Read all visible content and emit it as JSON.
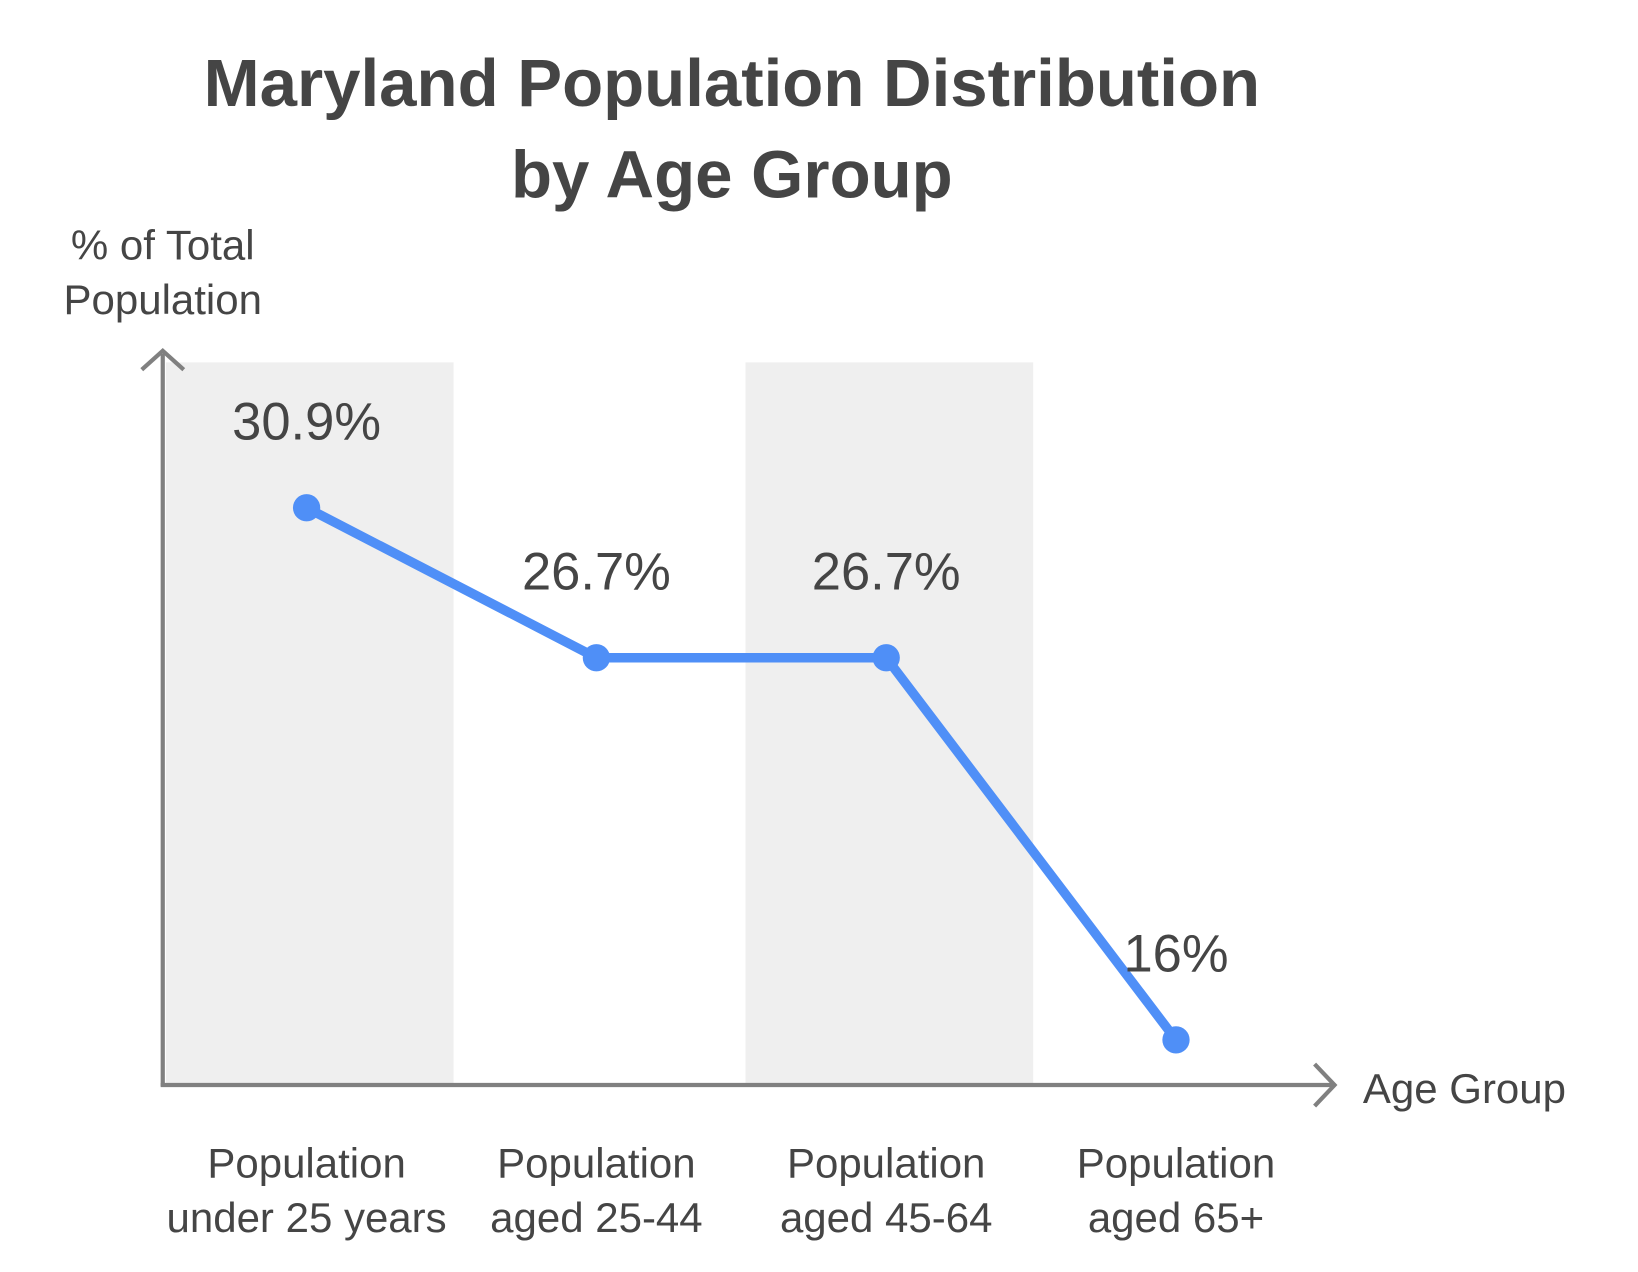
{
  "chart_data": {
    "type": "line",
    "title": [
      "Maryland Population Distribution",
      "by Age Group"
    ],
    "ylabel": [
      "% of Total",
      "Population"
    ],
    "xlabel": "Age Group",
    "categories": [
      [
        "Population",
        "under 25 years"
      ],
      [
        "Population",
        "aged 25-44"
      ],
      [
        "Population",
        "aged 45-64"
      ],
      [
        "Population",
        "aged 65+"
      ]
    ],
    "values": [
      30.9,
      26.7,
      26.7,
      16
    ],
    "data_labels": [
      "30.9%",
      "26.7%",
      "26.7%",
      "16%"
    ],
    "grid": false,
    "alternating_bands": true,
    "colors": {
      "line": "#4f8ff7",
      "highlight_label": "#4f8ff7",
      "text": "#454545",
      "axis": "#808080",
      "band": "#efefef"
    }
  }
}
